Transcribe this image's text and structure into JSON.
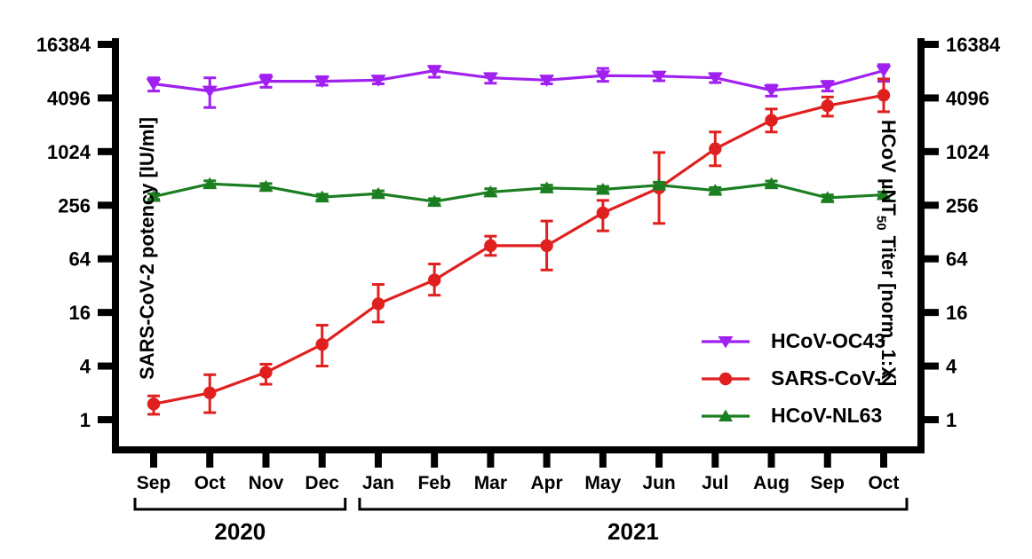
{
  "chart_data": {
    "type": "line",
    "title": "",
    "x_categories": [
      "Sep",
      "Oct",
      "Nov",
      "Dec",
      "Jan",
      "Feb",
      "Mar",
      "Apr",
      "May",
      "Jun",
      "Jul",
      "Aug",
      "Sep",
      "Oct"
    ],
    "year_groups": [
      {
        "label": "2020",
        "from": 0,
        "to": 3
      },
      {
        "label": "2021",
        "from": 4,
        "to": 13
      }
    ],
    "left_axis": {
      "label": "SARS-CoV-2 potency [IU/ml]",
      "scale": "log4",
      "ticks": [
        1,
        4,
        16,
        64,
        256,
        1024,
        4096,
        16384
      ],
      "range": [
        0.45,
        16384
      ]
    },
    "right_axis": {
      "label": "HCoV µNT50 Titer [norm. 1:X]",
      "label_pre": "HCoV µNT",
      "label_sub": "50",
      "label_post": " Titer [norm. 1:X]",
      "scale": "log4",
      "ticks": [
        1,
        4,
        16,
        64,
        256,
        1024,
        4096,
        16384
      ]
    },
    "legend_position": "right-middle",
    "grid": false,
    "series": [
      {
        "name": "HCoV-OC43",
        "color": "#A020F0",
        "marker": "triangle-down",
        "values": [
          5900,
          4900,
          6300,
          6300,
          6500,
          8300,
          6900,
          6500,
          7300,
          7200,
          6900,
          5000,
          5600,
          8300
        ],
        "err_lo": [
          4900,
          3200,
          5400,
          5700,
          5900,
          7000,
          6000,
          5900,
          6300,
          6400,
          6100,
          4300,
          4900,
          6300
        ],
        "err_hi": [
          6900,
          6900,
          7400,
          7100,
          7200,
          9300,
          7700,
          7200,
          8800,
          8000,
          7700,
          5700,
          6300,
          9700
        ]
      },
      {
        "name": "SARS-CoV-2",
        "color": "#E0201F",
        "marker": "circle",
        "values": [
          1.5,
          2.0,
          3.4,
          7.0,
          20,
          37,
          90,
          90,
          210,
          400,
          1100,
          2300,
          3350,
          4400
        ],
        "err_lo": [
          1.15,
          1.2,
          2.5,
          4.0,
          12.5,
          25,
          70,
          48,
          132,
          160,
          710,
          1700,
          2560,
          2870
        ],
        "err_hi": [
          1.85,
          3.2,
          4.2,
          11.5,
          33,
          56,
          115,
          170,
          290,
          1000,
          1700,
          3080,
          4200,
          6700
        ]
      },
      {
        "name": "HCoV-NL63",
        "color": "#1B7E20",
        "marker": "triangle-up",
        "values": [
          320,
          445,
          415,
          316,
          345,
          282,
          360,
          400,
          385,
          430,
          375,
          445,
          310,
          335
        ],
        "err_lo": [
          298,
          412,
          382,
          294,
          322,
          262,
          330,
          372,
          356,
          398,
          348,
          414,
          288,
          312
        ],
        "err_hi": [
          344,
          481,
          448,
          340,
          371,
          303,
          392,
          430,
          416,
          464,
          404,
          478,
          334,
          360
        ]
      }
    ]
  }
}
